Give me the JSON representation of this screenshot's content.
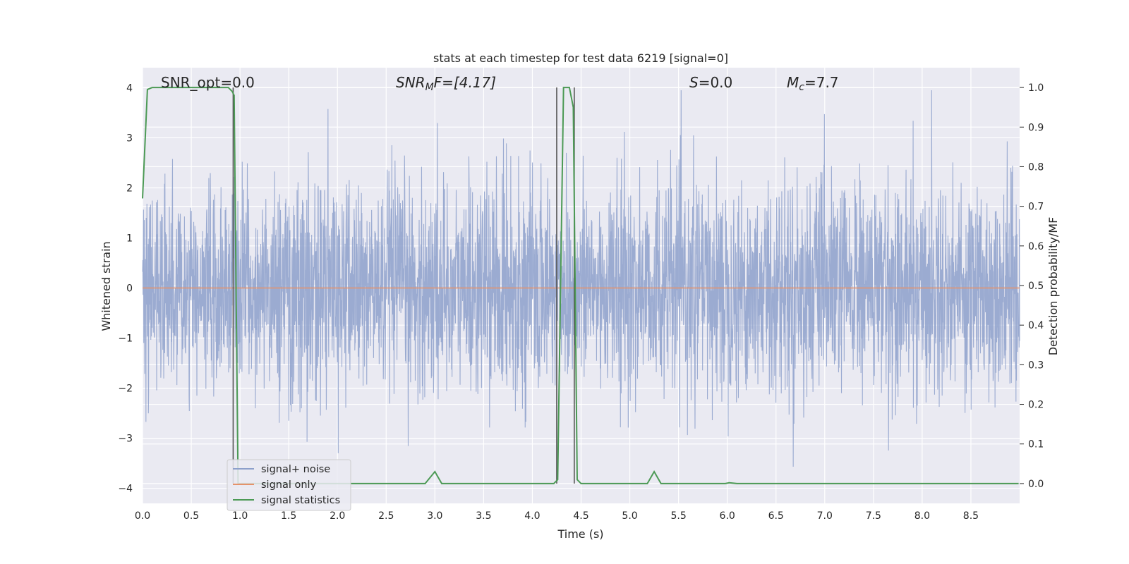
{
  "chart_data": {
    "type": "line",
    "title": "stats at each timestep for test data 6219 [signal=0]",
    "xlabel": "Time (s)",
    "ylabel_left": "Whitened strain",
    "ylabel_right": "Detection probability/MF",
    "xlim": [
      0,
      9
    ],
    "ylim_left": [
      -4.3,
      4.4
    ],
    "ylim_right": [
      -0.05,
      1.05
    ],
    "x_ticks": [
      0.0,
      0.5,
      1.0,
      1.5,
      2.0,
      2.5,
      3.0,
      3.5,
      4.0,
      4.5,
      5.0,
      5.5,
      6.0,
      6.5,
      7.0,
      7.5,
      8.0,
      8.5
    ],
    "x_tick_labels": [
      "0.0",
      "0.5",
      "1.0",
      "1.5",
      "2.0",
      "2.5",
      "3.0",
      "3.5",
      "4.0",
      "4.5",
      "5.0",
      "5.5",
      "6.0",
      "6.5",
      "7.0",
      "7.5",
      "8.0",
      "8.5"
    ],
    "y_left_ticks": [
      4,
      3,
      2,
      1,
      0,
      -1,
      -2,
      -3,
      -4
    ],
    "y_left_tick_labels": [
      "4",
      "3",
      "2",
      "1",
      "0",
      "−1",
      "−2",
      "−3",
      "−4"
    ],
    "y_right_ticks": [
      1.0,
      0.9,
      0.8,
      0.7,
      0.6,
      0.5,
      0.4,
      0.3,
      0.2,
      0.1,
      0.0
    ],
    "y_right_tick_labels": [
      "1.0",
      "0.9",
      "0.8",
      "0.7",
      "0.6",
      "0.5",
      "0.4",
      "0.3",
      "0.2",
      "0.1",
      "0.0"
    ],
    "grid": true,
    "legend_position": "lower-left",
    "annotations": {
      "snr_opt": "SNR_opt=0.0",
      "snr_mf_base": "SNR",
      "snr_mf_sub": "M",
      "snr_mf_rest": "F=[4.17]",
      "s_var": "S",
      "s_rest": "=0.0",
      "mc_var": "M",
      "mc_sub": "c",
      "mc_rest": "=7.7"
    },
    "series": [
      {
        "name": "signal+ noise",
        "axis": "left",
        "color": "#8da0cb",
        "description_range": [
          -3.8,
          4.0
        ]
      },
      {
        "name": "signal only",
        "axis": "left",
        "color": "#e5926a",
        "values_constant": 0
      },
      {
        "name": "signal statistics",
        "axis": "right",
        "color": "#4c9a55",
        "x": [
          0.0,
          0.05,
          0.1,
          0.2,
          0.5,
          0.88,
          0.92,
          0.94,
          0.98,
          1.0,
          1.5,
          2.0,
          2.5,
          2.9,
          3.0,
          3.07,
          3.5,
          4.0,
          4.22,
          4.26,
          4.32,
          4.38,
          4.42,
          4.46,
          4.5,
          4.55,
          4.6,
          5.0,
          5.18,
          5.25,
          5.32,
          5.5,
          5.98,
          6.02,
          6.1,
          6.5,
          7.0,
          8.0,
          8.99
        ],
        "y": [
          0.72,
          0.995,
          1.0,
          1.0,
          1.0,
          1.0,
          0.99,
          0.98,
          0.0,
          0.0,
          0.0,
          0.0,
          0.0,
          0.0,
          0.03,
          0.0,
          0.0,
          0.0,
          0.0,
          0.01,
          1.0,
          1.0,
          0.95,
          0.01,
          0.0,
          0.0,
          0.0,
          0.0,
          0.0,
          0.03,
          0.0,
          0.0,
          0.0,
          0.002,
          0.0,
          0.0,
          0.0,
          0.0,
          0.0
        ]
      }
    ],
    "vertical_lines": [
      0.93,
      4.25,
      4.43
    ],
    "colors": {
      "plot_background": "#eaeaf2",
      "grid": "#ffffff",
      "noise": "#8da0cb",
      "signal_only": "#e5926a",
      "statistics": "#4c9a55",
      "vlines": "#555555"
    }
  }
}
